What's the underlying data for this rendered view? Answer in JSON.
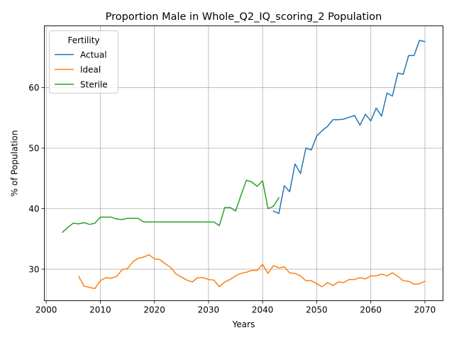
{
  "chart_data": {
    "type": "line",
    "title": "Proportion Male in Whole_Q2_IQ_scoring_2 Population",
    "xlabel": "Years",
    "ylabel": "% of Population",
    "xlim": [
      1999.65,
      2073.35
    ],
    "ylim": [
      24.8,
      70.2
    ],
    "xticks": [
      2000,
      2010,
      2020,
      2030,
      2040,
      2050,
      2060,
      2070
    ],
    "yticks": [
      30,
      40,
      50,
      60
    ],
    "grid": true,
    "legend": {
      "title": "Fertility",
      "placement": "top-left"
    },
    "series": [
      {
        "name": "Actual",
        "color": "#1f77b4",
        "x": [
          2042,
          2043,
          2044,
          2045,
          2046,
          2047,
          2048,
          2049,
          2050,
          2051,
          2052,
          2053,
          2054,
          2055,
          2056,
          2057,
          2058,
          2059,
          2060,
          2061,
          2062,
          2063,
          2064,
          2065,
          2066,
          2067,
          2068,
          2069,
          2070
        ],
        "y": [
          39.6,
          39.2,
          43.8,
          42.8,
          47.4,
          45.8,
          50.0,
          49.7,
          52.0,
          52.9,
          53.6,
          54.7,
          54.7,
          54.8,
          55.1,
          55.4,
          53.8,
          55.6,
          54.5,
          56.6,
          55.3,
          59.1,
          58.6,
          62.4,
          62.2,
          65.3,
          65.3,
          67.8,
          67.6
        ]
      },
      {
        "name": "Ideal",
        "color": "#ff7f0e",
        "x": [
          2006,
          2007,
          2008,
          2009,
          2010,
          2011,
          2012,
          2013,
          2014,
          2015,
          2016,
          2017,
          2018,
          2019,
          2020,
          2021,
          2022,
          2023,
          2024,
          2025,
          2026,
          2027,
          2028,
          2029,
          2030,
          2031,
          2032,
          2033,
          2034,
          2035,
          2036,
          2037,
          2038,
          2039,
          2040,
          2041,
          2042,
          2043,
          2044,
          2045,
          2046,
          2047,
          2048,
          2049,
          2050,
          2051,
          2052,
          2053,
          2054,
          2055,
          2056,
          2057,
          2058,
          2059,
          2060,
          2061,
          2062,
          2063,
          2064,
          2065,
          2066,
          2067,
          2068,
          2069,
          2070
        ],
        "y": [
          28.8,
          27.2,
          27.0,
          26.8,
          28.1,
          28.6,
          28.5,
          28.8,
          29.9,
          30.1,
          31.2,
          31.8,
          32.0,
          32.4,
          31.7,
          31.6,
          30.9,
          30.3,
          29.2,
          28.7,
          28.2,
          27.9,
          28.6,
          28.6,
          28.3,
          28.2,
          27.1,
          27.9,
          28.3,
          28.9,
          29.3,
          29.5,
          29.8,
          29.8,
          30.8,
          29.3,
          30.6,
          30.2,
          30.4,
          29.4,
          29.3,
          28.9,
          28.1,
          28.1,
          27.6,
          27.1,
          27.8,
          27.3,
          27.9,
          27.8,
          28.3,
          28.3,
          28.6,
          28.4,
          28.9,
          28.9,
          29.2,
          28.9,
          29.4,
          28.8,
          28.1,
          28.0,
          27.5,
          27.6,
          28.0
        ]
      },
      {
        "name": "Sterile",
        "color": "#2ca02c",
        "x": [
          2003,
          2004,
          2005,
          2006,
          2007,
          2008,
          2009,
          2010,
          2011,
          2012,
          2013,
          2014,
          2015,
          2016,
          2017,
          2018,
          2019,
          2020,
          2021,
          2022,
          2023,
          2024,
          2025,
          2026,
          2027,
          2028,
          2029,
          2030,
          2031,
          2032,
          2033,
          2034,
          2035,
          2036,
          2037,
          2038,
          2039,
          2040,
          2041,
          2042,
          2043
        ],
        "y": [
          36.1,
          36.9,
          37.6,
          37.5,
          37.7,
          37.4,
          37.6,
          38.6,
          38.6,
          38.6,
          38.3,
          38.2,
          38.4,
          38.4,
          38.4,
          37.8,
          37.8,
          37.8,
          37.8,
          37.8,
          37.8,
          37.8,
          37.8,
          37.8,
          37.8,
          37.8,
          37.8,
          37.8,
          37.8,
          37.2,
          40.2,
          40.2,
          39.6,
          42.2,
          44.7,
          44.4,
          43.7,
          44.6,
          40.0,
          40.4,
          41.8
        ]
      }
    ]
  }
}
